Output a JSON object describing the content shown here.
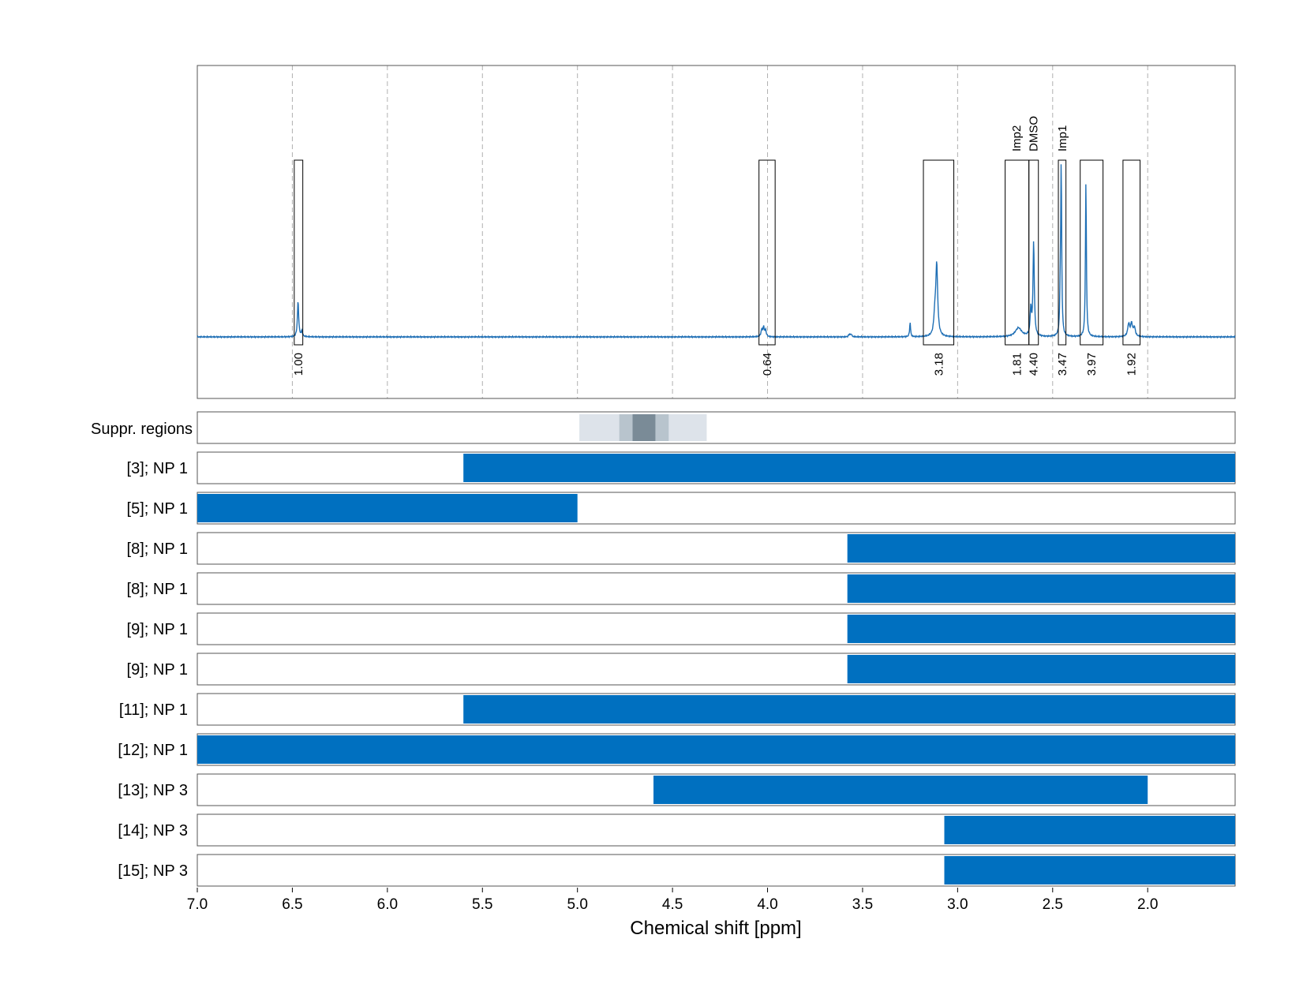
{
  "chart_data": {
    "type": "line",
    "xlabel": "Chemical shift [ppm]",
    "xlim": [
      7.0,
      1.54
    ],
    "x_ticks": [
      "7.0",
      "6.5",
      "6.0",
      "5.5",
      "5.0",
      "4.5",
      "4.0",
      "3.5",
      "3.0",
      "2.5",
      "2.0"
    ],
    "x_tick_values": [
      7.0,
      6.5,
      6.0,
      5.5,
      5.0,
      4.5,
      4.0,
      3.5,
      3.0,
      2.5,
      2.0
    ],
    "grid": "dashed vertical",
    "spectrum": {
      "color": "#1f6fb5",
      "peaks": [
        {
          "x": 6.47,
          "height": 0.2,
          "width": 0.004
        },
        {
          "x": 6.45,
          "height": 0.03,
          "width": 0.004
        },
        {
          "x": 4.03,
          "height": 0.04,
          "width": 0.005
        },
        {
          "x": 4.02,
          "height": 0.05,
          "width": 0.004
        },
        {
          "x": 4.01,
          "height": 0.035,
          "width": 0.004
        },
        {
          "x": 3.57,
          "height": 0.015,
          "width": 0.004
        },
        {
          "x": 3.56,
          "height": 0.015,
          "width": 0.004
        },
        {
          "x": 3.25,
          "height": 0.08,
          "width": 0.003
        },
        {
          "x": 3.11,
          "height": 0.4,
          "width": 0.006
        },
        {
          "x": 3.12,
          "height": 0.1,
          "width": 0.006
        },
        {
          "x": 2.68,
          "height": 0.05,
          "width": 0.02
        },
        {
          "x": 2.6,
          "height": 0.53,
          "width": 0.004
        },
        {
          "x": 2.615,
          "height": 0.15,
          "width": 0.004
        },
        {
          "x": 2.455,
          "height": 0.95,
          "width": 0.003
        },
        {
          "x": 2.46,
          "height": 0.18,
          "width": 0.003
        },
        {
          "x": 2.325,
          "height": 0.87,
          "width": 0.003
        },
        {
          "x": 2.1,
          "height": 0.07,
          "width": 0.006
        },
        {
          "x": 2.085,
          "height": 0.07,
          "width": 0.006
        },
        {
          "x": 2.07,
          "height": 0.05,
          "width": 0.006
        }
      ]
    },
    "integration_regions": [
      {
        "from": 6.49,
        "to": 6.445,
        "value": "1.00"
      },
      {
        "from": 4.045,
        "to": 3.96,
        "value": "0.64"
      },
      {
        "from": 3.18,
        "to": 3.02,
        "value": "3.18"
      },
      {
        "from": 2.75,
        "to": 2.625,
        "value": "1.81"
      },
      {
        "from": 2.625,
        "to": 2.575,
        "value": "4.40",
        "label": "DMSO"
      },
      {
        "from": 2.47,
        "to": 2.43,
        "value": "3.47",
        "label": "Imp1"
      },
      {
        "from": 2.355,
        "to": 2.235,
        "value": "3.97"
      },
      {
        "from": 2.13,
        "to": 2.04,
        "value": "1.92"
      }
    ],
    "region_labels": [
      {
        "x": 2.69,
        "text": "Imp2"
      },
      {
        "x": 2.6,
        "text": "DMSO"
      },
      {
        "x": 2.45,
        "text": "Imp1"
      }
    ],
    "suppressed_regions": {
      "label": "Suppr. regions",
      "bands": [
        {
          "from": 4.99,
          "to": 4.32,
          "level": "light"
        },
        {
          "from": 4.78,
          "to": 4.52,
          "level": "medium"
        },
        {
          "from": 4.71,
          "to": 4.59,
          "level": "dark"
        }
      ]
    },
    "np_rows": [
      {
        "label": "[3]; NP 1",
        "from": 5.6,
        "to": 1.54
      },
      {
        "label": "[5]; NP 1",
        "from": 7.0,
        "to": 5.0
      },
      {
        "label": "[8]; NP 1",
        "from": 3.58,
        "to": 1.54
      },
      {
        "label": "[8]; NP 1",
        "from": 3.58,
        "to": 1.54
      },
      {
        "label": "[9]; NP 1",
        "from": 3.58,
        "to": 1.54
      },
      {
        "label": "[9]; NP 1",
        "from": 3.58,
        "to": 1.54
      },
      {
        "label": "[11]; NP 1",
        "from": 5.6,
        "to": 1.54
      },
      {
        "label": "[12]; NP 1",
        "from": 7.0,
        "to": 1.54
      },
      {
        "label": "[13]; NP 3",
        "from": 4.6,
        "to": 2.0
      },
      {
        "label": "[14]; NP 3",
        "from": 3.07,
        "to": 1.54
      },
      {
        "label": "[15]; NP 3",
        "from": 3.07,
        "to": 1.54
      }
    ],
    "colors": {
      "bar": "#0070c0",
      "integral_value": "#ff0000",
      "suppr_light": "#dde3ea",
      "suppr_medium": "#b8c4cd",
      "suppr_dark": "#7a8b97"
    }
  }
}
